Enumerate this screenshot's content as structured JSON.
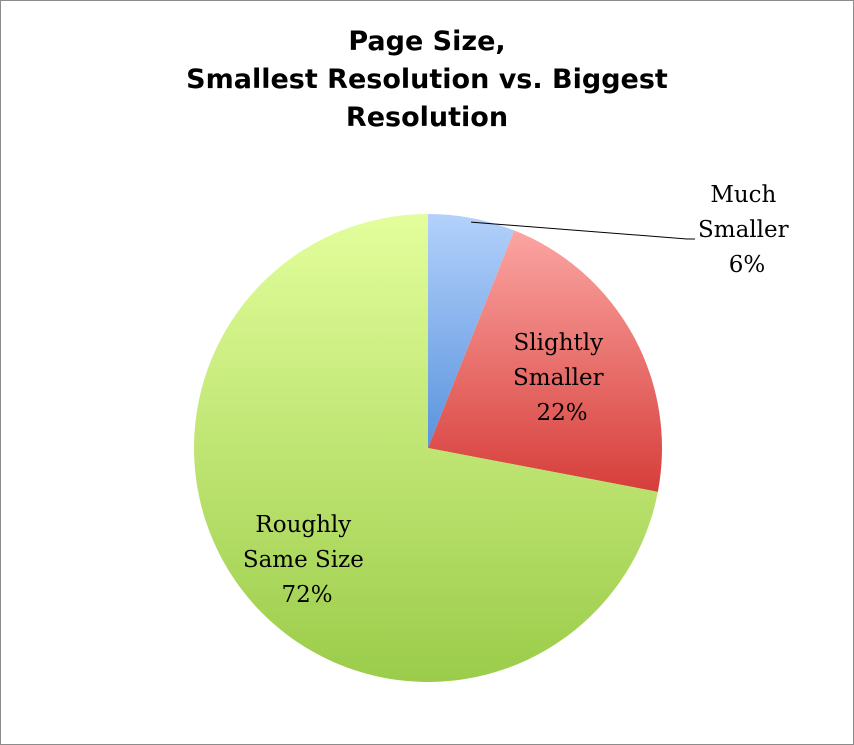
{
  "chart_data": {
    "type": "pie",
    "title": [
      "Page Size,",
      "Smallest Resolution vs. Biggest",
      "Resolution"
    ],
    "slices": [
      {
        "label": [
          "Much",
          "Smaller"
        ],
        "value": 6,
        "value_label": "6%",
        "color_light": "#b3d1fb",
        "color_dark": "#5a93dd",
        "label_position": "outside",
        "leader_line": true
      },
      {
        "label": [
          "Slightly",
          "Smaller"
        ],
        "value": 22,
        "value_label": "22%",
        "color_light": "#fba5a2",
        "color_dark": "#d63e3a",
        "label_position": "inside"
      },
      {
        "label": [
          "Roughly",
          "Same Size"
        ],
        "value": 72,
        "value_label": "72%",
        "color_light": "#e3fe9c",
        "color_dark": "#9bcc4a",
        "label_position": "inside"
      }
    ],
    "start_angle": "top",
    "direction": "clockwise",
    "legend": "none"
  }
}
